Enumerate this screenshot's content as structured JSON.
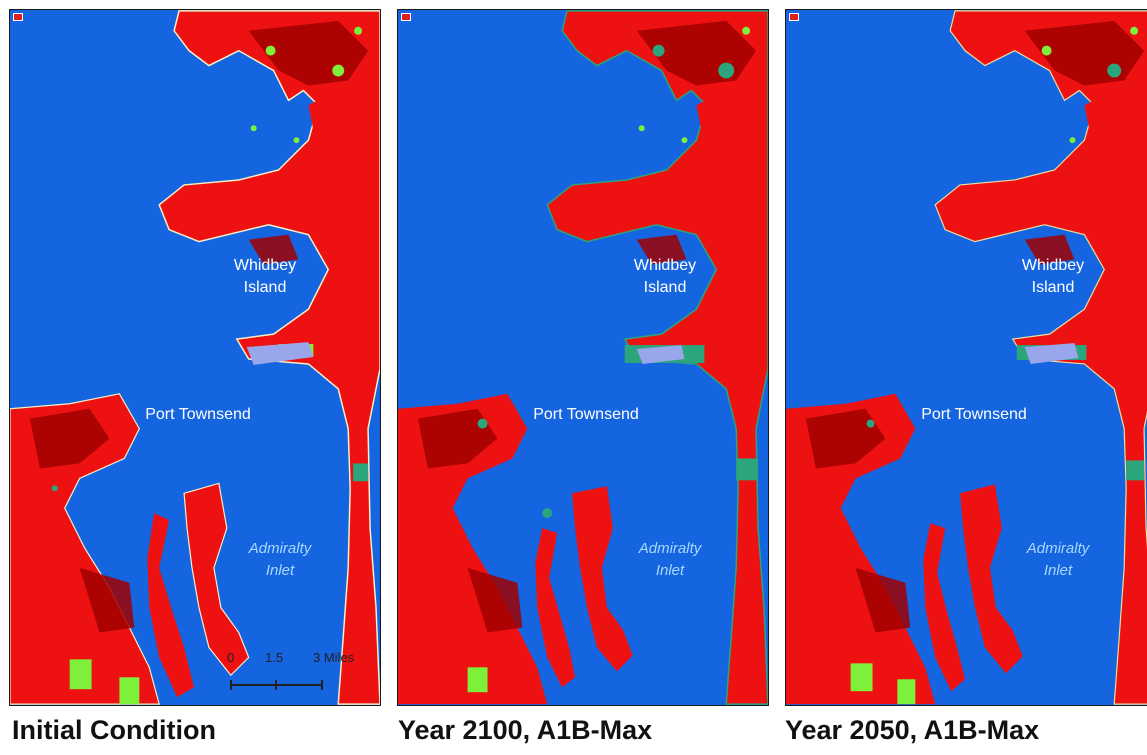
{
  "panels": [
    {
      "caption": "Initial Condition",
      "island_label_1": "Whidbey",
      "island_label_2": "Island",
      "town_label": "Port Townsend",
      "inlet_label_1": "Admiralty",
      "inlet_label_2": "Inlet"
    },
    {
      "caption": "Year 2100, A1B-Max",
      "island_label_1": "Whidbey",
      "island_label_2": "Island",
      "town_label": "Port Townsend",
      "inlet_label_1": "Admiralty",
      "inlet_label_2": "Inlet"
    },
    {
      "caption": "Year 2050, A1B-Max",
      "island_label_1": "Whidbey",
      "island_label_2": "Island",
      "town_label": "Port Townsend",
      "inlet_label_1": "Admiralty",
      "inlet_label_2": "Inlet"
    }
  ],
  "scale_bar": {
    "tick_0": "0",
    "tick_1": "1.5",
    "tick_2": "3 Miles"
  },
  "colors": {
    "water": "#1565e0",
    "land": "#ee1111",
    "dark_land": "#a00000",
    "wetland": "#7ef03a",
    "marsh": "#2aa57c",
    "lagoon": "#9aa6ec",
    "shore": "#f4f0c8"
  }
}
